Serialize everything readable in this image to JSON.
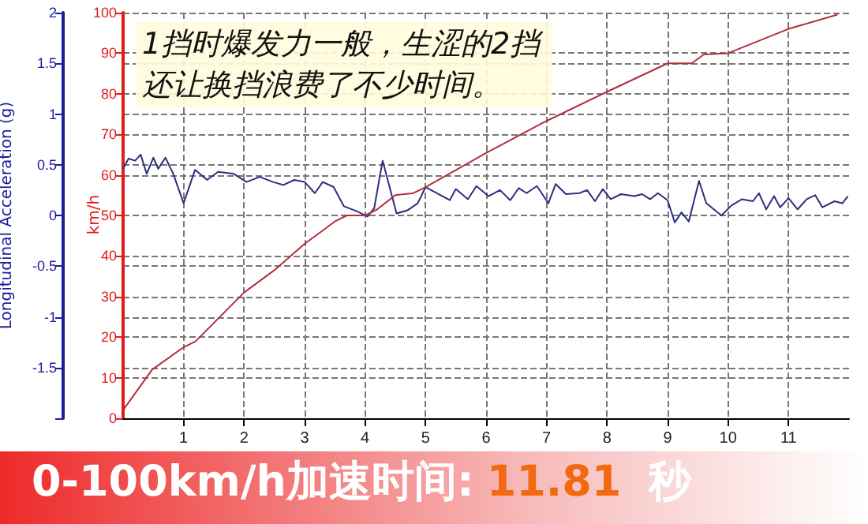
{
  "chart_data": {
    "type": "line",
    "title": "0-100km/h加速时间:11.81 秒",
    "ylabel": "Longitudinal Acceleration (g)",
    "y2label": "km/h",
    "annotations": [
      "1挡时爆发力一般，生涩的2挡还让换挡浪费了不少时间。"
    ],
    "xlim": [
      0,
      12
    ],
    "xticks": [
      1,
      2,
      3,
      4,
      5,
      6,
      7,
      8,
      9,
      10,
      11
    ],
    "ylim": [
      -2,
      2
    ],
    "yticks": [
      {
        "value": -2,
        "label": null
      },
      -1.5,
      -1,
      -0.5,
      0,
      0.5,
      1,
      1.5,
      2
    ],
    "y2lim": [
      0,
      100
    ],
    "y2ticks": [
      0,
      10,
      20,
      30,
      40,
      50,
      60,
      70,
      80,
      90,
      100
    ],
    "grid": true,
    "marker": "none",
    "line_style": "solid",
    "series": [
      {
        "color": "#2e2e80",
        "x": [
          0,
          0.09,
          0.2,
          0.29,
          0.39,
          0.5,
          0.58,
          0.7,
          0.83,
          1.0,
          1.19,
          1.39,
          1.57,
          1.83,
          2.04,
          2.26,
          2.48,
          2.65,
          2.83,
          3.0,
          3.17,
          3.3,
          3.48,
          3.65,
          3.87,
          4.04,
          4.15,
          4.29,
          4.52,
          4.7,
          4.87,
          5.0,
          5.4,
          5.5,
          5.7,
          5.84,
          6.04,
          6.23,
          6.4,
          6.54,
          6.67,
          6.84,
          7.03,
          7.15,
          7.32,
          7.54,
          7.67,
          7.8,
          7.93,
          8.06,
          8.23,
          8.45,
          8.58,
          8.71,
          8.84,
          9.0,
          9.12,
          9.23,
          9.35,
          9.52,
          9.64,
          9.89,
          10.06,
          10.23,
          10.41,
          10.51,
          10.63,
          10.76,
          10.86,
          11.0,
          11.15,
          11.3,
          11.44,
          11.56,
          11.76,
          11.89,
          11.98
        ],
        "values": [
          0.46,
          0.56,
          0.54,
          0.6,
          0.41,
          0.57,
          0.46,
          0.57,
          0.41,
          0.12,
          0.45,
          0.35,
          0.43,
          0.41,
          0.33,
          0.38,
          0.33,
          0.3,
          0.35,
          0.33,
          0.22,
          0.33,
          0.28,
          0.09,
          0.04,
          -0.01,
          0.07,
          0.54,
          0.02,
          0.05,
          0.12,
          0.28,
          0.15,
          0.26,
          0.16,
          0.29,
          0.19,
          0.25,
          0.15,
          0.27,
          0.22,
          0.29,
          0.12,
          0.31,
          0.21,
          0.22,
          0.25,
          0.14,
          0.26,
          0.16,
          0.21,
          0.19,
          0.21,
          0.16,
          0.22,
          0.15,
          -0.07,
          0.03,
          -0.06,
          0.34,
          0.12,
          0.0,
          0.1,
          0.16,
          0.14,
          0.22,
          0.06,
          0.19,
          0.08,
          0.17,
          0.06,
          0.16,
          0.2,
          0.08,
          0.14,
          0.12,
          0.19
        ]
      },
      {
        "color": "#b0303c",
        "axis": "y2",
        "x": [
          0,
          0.48,
          1.0,
          1.2,
          2.0,
          2.5,
          3.0,
          3.5,
          3.7,
          4.0,
          4.2,
          4.5,
          4.8,
          5.0,
          6.0,
          7.0,
          8.0,
          9.0,
          9.4,
          9.6,
          10.0,
          11.0,
          11.81
        ],
        "values": [
          2,
          12,
          17.5,
          19,
          31,
          36.5,
          43,
          48.5,
          50,
          50,
          51.5,
          55,
          55.5,
          57,
          65.4,
          73.3,
          80.5,
          87.5,
          87.5,
          89.7,
          90,
          96,
          99.5
        ]
      }
    ]
  }
}
